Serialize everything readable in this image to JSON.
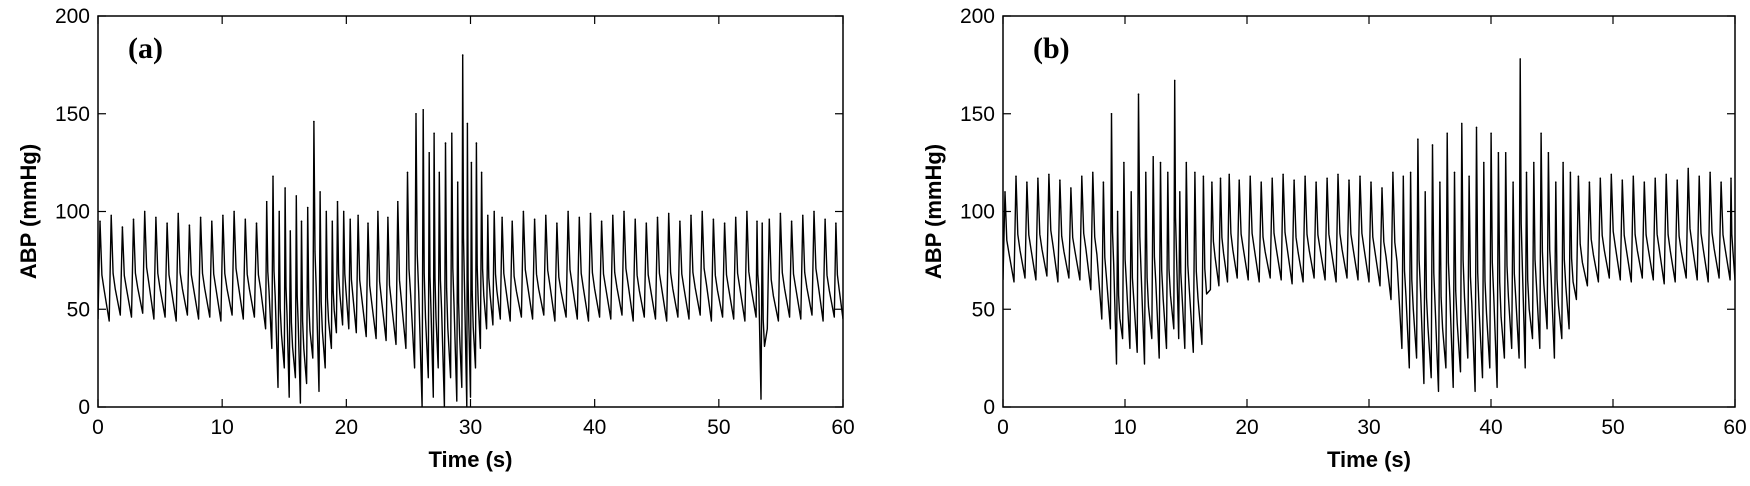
{
  "chart_data": [
    {
      "type": "line",
      "panel_label": "(a)",
      "xlabel": "Time (s)",
      "ylabel": "ABP (mmHg)",
      "xlim": [
        0,
        60
      ],
      "ylim": [
        0,
        200
      ],
      "xticks": [
        0,
        10,
        20,
        30,
        40,
        50,
        60
      ],
      "yticks": [
        0,
        50,
        100,
        150,
        200
      ],
      "grid": false,
      "line_color": "#000000",
      "series": [
        {
          "x": [
            0,
            0.9,
            1.8,
            2.7,
            3.6,
            4.5,
            5.4,
            6.3,
            7.2,
            8.1,
            9.0,
            9.9,
            10.8,
            11.7,
            12.6,
            13.5,
            14.0,
            14.5,
            15.0,
            15.4,
            15.9,
            16.3,
            16.8,
            17.3,
            17.8,
            18.3,
            18.8,
            19.2,
            19.7,
            20.2,
            20.8,
            21.6,
            22.4,
            23.2,
            24.0,
            24.8,
            25.5,
            26.1,
            26.6,
            27.0,
            27.4,
            27.9,
            28.4,
            28.9,
            29.3,
            29.7,
            30.0,
            30.4,
            30.8,
            31.3,
            31.8,
            32.4,
            33.2,
            34.1,
            35.0,
            35.9,
            36.8,
            37.7,
            38.6,
            39.5,
            40.4,
            41.3,
            42.2,
            43.1,
            44.0,
            44.9,
            45.8,
            46.7,
            47.6,
            48.5,
            49.4,
            50.3,
            51.2,
            52.1,
            53.0,
            53.4,
            53.9,
            54.8,
            55.7,
            56.6,
            57.5,
            58.4,
            59.3,
            60.0
          ],
          "peaks": [
            95,
            98,
            92,
            96,
            100,
            97,
            94,
            99,
            93,
            97,
            95,
            98,
            100,
            96,
            94,
            105,
            118,
            100,
            112,
            90,
            108,
            95,
            102,
            146,
            110,
            100,
            95,
            105,
            100,
            96,
            98,
            94,
            100,
            97,
            105,
            120,
            150,
            152,
            130,
            140,
            120,
            135,
            140,
            115,
            180,
            145,
            125,
            135,
            120,
            98,
            100,
            97,
            95,
            100,
            96,
            98,
            94,
            100,
            97,
            99,
            95,
            98,
            100,
            96,
            94,
            97,
            99,
            95,
            98,
            100,
            96,
            94,
            97,
            100,
            95,
            94,
            96,
            99,
            95,
            98,
            100,
            96,
            94,
            90
          ],
          "troughs": [
            45,
            44,
            47,
            46,
            48,
            45,
            46,
            44,
            47,
            45,
            46,
            44,
            47,
            45,
            46,
            40,
            30,
            10,
            20,
            5,
            15,
            2,
            12,
            25,
            8,
            20,
            30,
            38,
            42,
            40,
            38,
            36,
            35,
            34,
            32,
            30,
            20,
            0,
            15,
            5,
            20,
            0,
            15,
            3,
            10,
            0,
            5,
            20,
            30,
            40,
            42,
            45,
            44,
            46,
            45,
            47,
            44,
            46,
            45,
            44,
            46,
            45,
            47,
            44,
            46,
            45,
            44,
            46,
            45,
            47,
            44,
            46,
            45,
            44,
            46,
            4,
            40,
            44,
            46,
            45,
            47,
            44,
            46,
            45
          ]
        }
      ]
    },
    {
      "type": "line",
      "panel_label": "(b)",
      "xlabel": "Time (s)",
      "ylabel": "ABP (mmHg)",
      "xlim": [
        0,
        60
      ],
      "ylim": [
        0,
        200
      ],
      "xticks": [
        0,
        10,
        20,
        30,
        40,
        50,
        60
      ],
      "yticks": [
        0,
        50,
        100,
        150,
        200
      ],
      "grid": false,
      "line_color": "#000000",
      "series": [
        {
          "x": [
            0,
            0.9,
            1.8,
            2.7,
            3.6,
            4.5,
            5.4,
            6.3,
            7.2,
            8.1,
            8.8,
            9.3,
            9.8,
            10.4,
            11.0,
            11.6,
            12.2,
            12.8,
            13.4,
            14.0,
            14.4,
            14.9,
            15.6,
            16.3,
            17.0,
            17.7,
            18.4,
            19.2,
            20.1,
            21.0,
            21.9,
            22.8,
            23.7,
            24.6,
            25.5,
            26.4,
            27.3,
            28.2,
            29.1,
            30.0,
            30.9,
            31.8,
            32.7,
            33.3,
            33.9,
            34.5,
            35.1,
            35.7,
            36.3,
            36.9,
            37.5,
            38.1,
            38.7,
            39.3,
            39.9,
            40.5,
            41.1,
            41.7,
            42.3,
            42.8,
            43.4,
            44.0,
            44.6,
            45.2,
            45.8,
            46.4,
            47.0,
            47.9,
            48.8,
            49.7,
            50.6,
            51.5,
            52.4,
            53.3,
            54.2,
            55.1,
            56.0,
            56.9,
            57.8,
            58.7,
            59.6,
            60.0
          ],
          "peaks": [
            110,
            118,
            115,
            117,
            119,
            116,
            112,
            118,
            120,
            115,
            150,
            100,
            125,
            110,
            160,
            120,
            128,
            125,
            120,
            167,
            110,
            125,
            120,
            118,
            115,
            117,
            119,
            116,
            118,
            115,
            117,
            119,
            116,
            118,
            115,
            117,
            119,
            116,
            118,
            115,
            112,
            120,
            118,
            120,
            137,
            110,
            134,
            115,
            140,
            120,
            145,
            118,
            143,
            125,
            140,
            130,
            130,
            115,
            178,
            120,
            125,
            140,
            130,
            115,
            125,
            120,
            118,
            115,
            117,
            119,
            116,
            118,
            115,
            117,
            119,
            116,
            122,
            118,
            120,
            115,
            117,
            115
          ],
          "troughs": [
            65,
            64,
            66,
            65,
            67,
            64,
            66,
            65,
            60,
            45,
            40,
            22,
            35,
            30,
            28,
            22,
            35,
            25,
            30,
            40,
            35,
            30,
            28,
            32,
            60,
            62,
            64,
            66,
            65,
            64,
            66,
            65,
            63,
            64,
            66,
            65,
            64,
            66,
            65,
            64,
            62,
            55,
            30,
            20,
            25,
            12,
            15,
            8,
            20,
            10,
            18,
            25,
            8,
            15,
            20,
            10,
            25,
            30,
            25,
            20,
            35,
            30,
            40,
            25,
            35,
            40,
            55,
            62,
            64,
            66,
            65,
            64,
            66,
            65,
            63,
            64,
            66,
            65,
            64,
            66,
            65,
            65
          ]
        }
      ]
    }
  ]
}
